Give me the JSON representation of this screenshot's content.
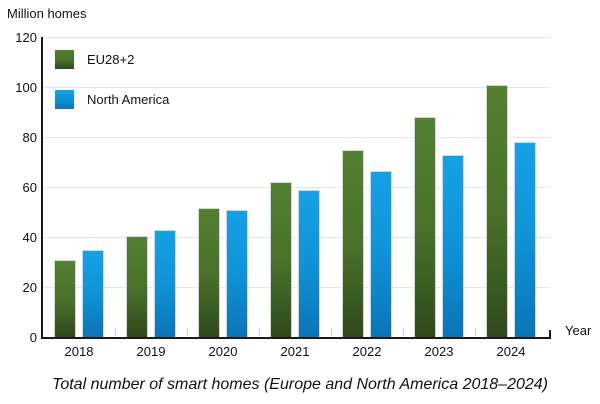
{
  "chart_data": {
    "type": "bar",
    "ylabel": "Million homes",
    "xlabel": "Year",
    "caption": "Total number of smart homes (Europe and North America 2018–2024)",
    "categories": [
      "2018",
      "2019",
      "2020",
      "2021",
      "2022",
      "2023",
      "2024"
    ],
    "series": [
      {
        "name": "EU28+2",
        "values": [
          31,
          40.5,
          51.5,
          62,
          75,
          88,
          101
        ],
        "gradient": [
          "#538032",
          "#4a722b",
          "#2e4a1c"
        ]
      },
      {
        "name": "North America",
        "values": [
          35,
          43,
          51,
          59,
          66.5,
          73,
          78
        ],
        "gradient": [
          "#15a1e5",
          "#0f93d6",
          "#0b74b8"
        ]
      }
    ],
    "ylim": [
      0,
      120
    ],
    "yticks": [
      0,
      20,
      40,
      60,
      80,
      100,
      120
    ],
    "grid": true,
    "legend_position": "top-left-inside",
    "colors": {
      "axis": "#1a1a1a",
      "gridline": "#e5e5e5",
      "bar_outline": "#d7d7d7",
      "separator_tick": "#c9c9c9",
      "text": "#111111"
    }
  }
}
